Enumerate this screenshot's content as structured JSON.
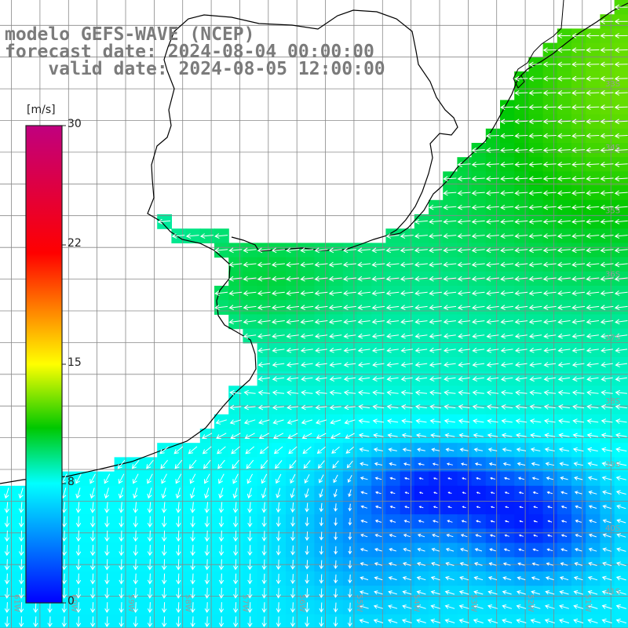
{
  "titles": {
    "line1": "modelo GEFS-WAVE (NCEP)",
    "line2": "forecast date: 2024-08-04 00:00:00",
    "line3": "    valid date: 2024-08-05 12:00:00"
  },
  "colorbar": {
    "unit": "[m/s]",
    "min": 0,
    "max": 30,
    "tick_labels": [
      "30",
      "22",
      "15",
      "8",
      "0"
    ],
    "tick_values": [
      30,
      22.5,
      15,
      7.5,
      0
    ],
    "colors": [
      "#0000ff",
      "#00ffff",
      "#00c800",
      "#ffff00",
      "#ff0000",
      "#c0007f"
    ],
    "color_stops": [
      0,
      7.5,
      11,
      15,
      22,
      30
    ]
  },
  "map": {
    "lon_range": [
      -61.2,
      -50.2
    ],
    "lat_range": [
      -41.5,
      -31.6
    ],
    "lon_labels": [
      "61W",
      "60W",
      "59W",
      "58W",
      "57W",
      "56W",
      "55W",
      "54W",
      "53W",
      "52W",
      "51W"
    ],
    "lat_labels": [
      "33S",
      "34S",
      "35S",
      "36S",
      "37S",
      "38S",
      "39S",
      "40S",
      "41S"
    ],
    "grid": true
  }
}
